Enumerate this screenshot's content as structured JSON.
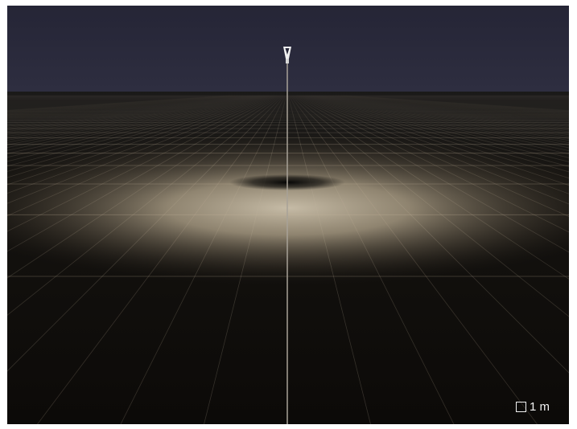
{
  "viewport": {
    "scene": "luminaire-light-distribution-preview",
    "colors": {
      "sky": "#262638",
      "floor": "#0e0c0a",
      "grid": "#c8b8a0",
      "light_pool": "#d8ccb4",
      "pole": "#a8a298"
    }
  },
  "scale": {
    "label": "1 m"
  }
}
